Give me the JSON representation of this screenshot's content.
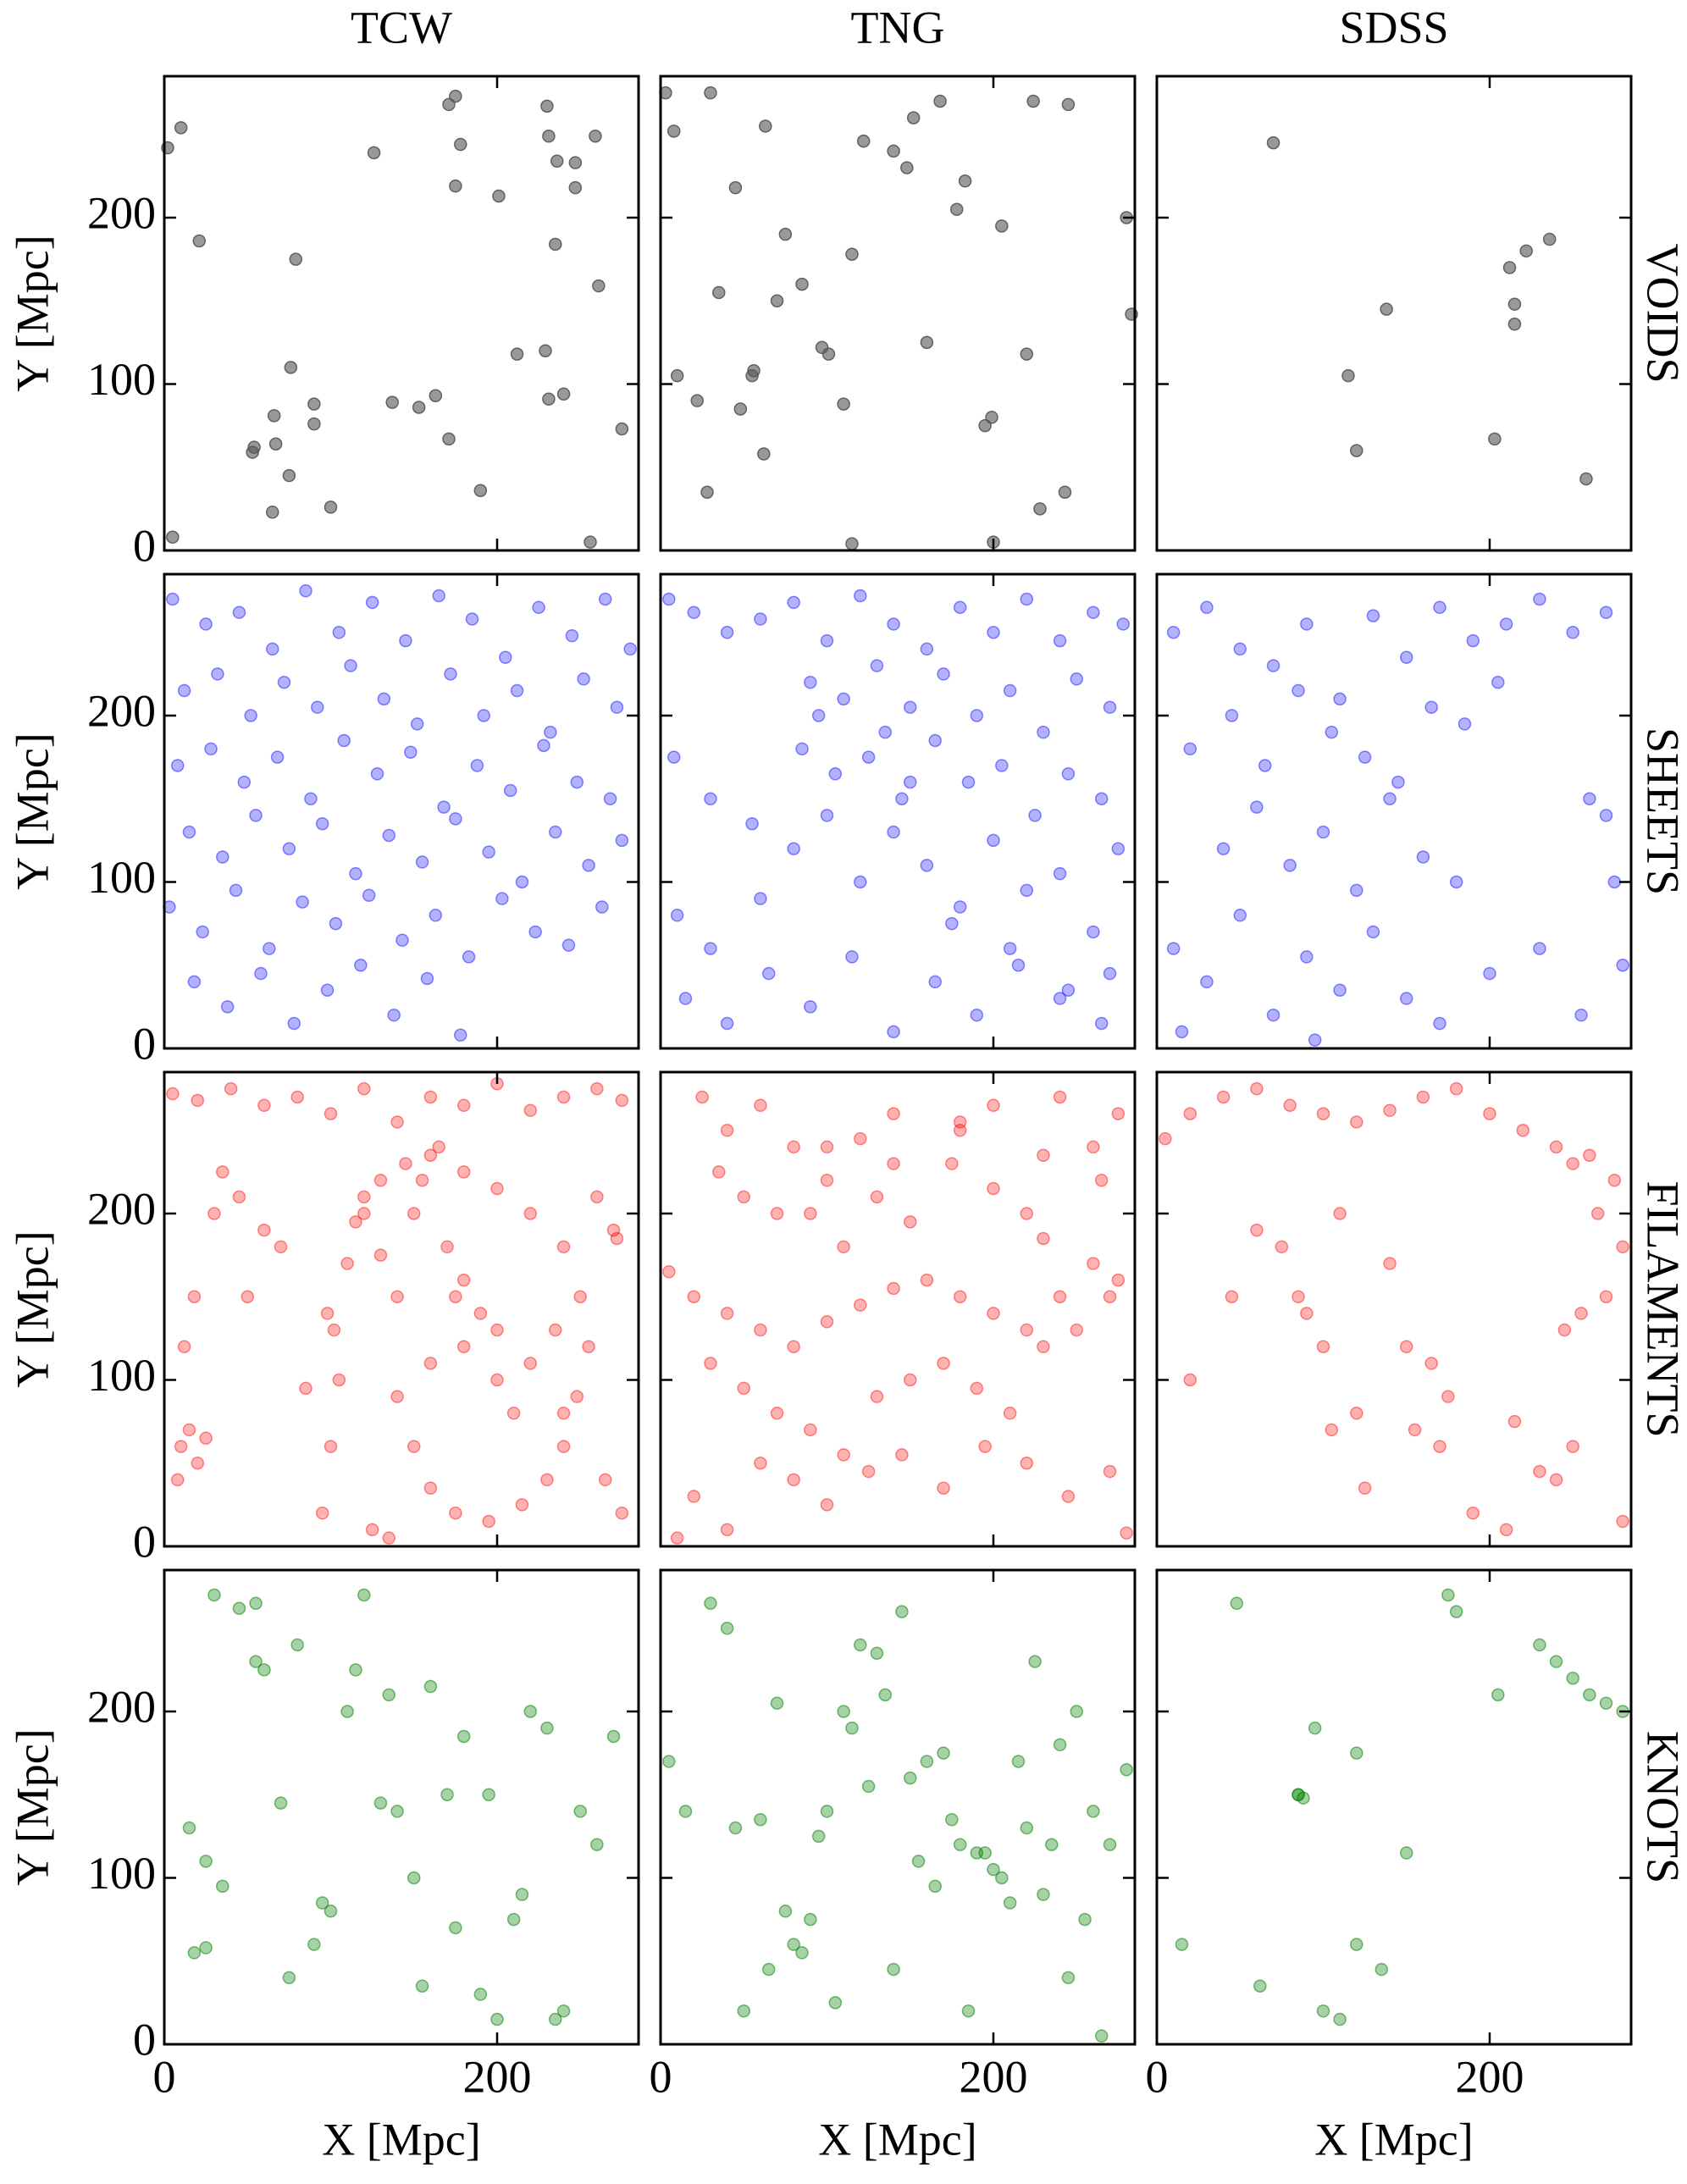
{
  "column_titles": [
    "TCW",
    "TNG",
    "SDSS"
  ],
  "row_titles": [
    "VOIDS",
    "SHEETS",
    "FILAMENTS",
    "KNOTS"
  ],
  "chart_data": [
    {
      "type": "scatter",
      "ylabel": "Y [Mpc]",
      "color": "#555555",
      "alpha": 0.6,
      "xlim": [
        0,
        285
      ],
      "ylim": [
        0,
        285
      ],
      "xticks": [
        0,
        200
      ],
      "yticks": [
        0,
        100,
        200
      ],
      "x": [
        2,
        10,
        21,
        79,
        76,
        66,
        90,
        90,
        53,
        67,
        75,
        65,
        100,
        126,
        137,
        153,
        163,
        171,
        175,
        171,
        178,
        175,
        201,
        190,
        230,
        231,
        236,
        247,
        235,
        212,
        229,
        240,
        231,
        247,
        261,
        275,
        256,
        5,
        259,
        54
      ],
      "values": [
        242,
        254,
        186,
        175,
        110,
        81,
        88,
        76,
        59,
        64,
        45,
        23,
        26,
        239,
        89,
        86,
        93,
        67,
        273,
        268,
        244,
        219,
        213,
        36,
        267,
        249,
        234,
        233,
        184,
        118,
        120,
        94,
        91,
        218,
        159,
        73,
        5,
        8,
        249,
        62
      ]
    },
    {
      "type": "scatter",
      "color": "#555555",
      "alpha": 0.6,
      "xlim": [
        0,
        285
      ],
      "ylim": [
        0,
        285
      ],
      "xticks": [
        0,
        200
      ],
      "yticks": [
        0,
        100,
        200
      ],
      "x": [
        3,
        8,
        10,
        22,
        28,
        45,
        48,
        55,
        62,
        63,
        70,
        75,
        85,
        97,
        101,
        110,
        115,
        122,
        140,
        148,
        152,
        160,
        168,
        178,
        183,
        195,
        199,
        200,
        205,
        220,
        224,
        228,
        243,
        245,
        280,
        283,
        30,
        35,
        56,
        115
      ],
      "values": [
        275,
        252,
        105,
        90,
        35,
        218,
        85,
        105,
        58,
        255,
        150,
        190,
        160,
        122,
        118,
        88,
        178,
        246,
        240,
        230,
        260,
        125,
        270,
        205,
        222,
        75,
        80,
        5,
        195,
        118,
        270,
        25,
        35,
        268,
        200,
        142,
        275,
        155,
        108,
        4
      ]
    },
    {
      "type": "scatter",
      "color": "#555555",
      "alpha": 0.6,
      "xlim": [
        0,
        285
      ],
      "ylim": [
        0,
        285
      ],
      "xticks": [
        0,
        200
      ],
      "yticks": [
        0,
        100,
        200
      ],
      "x": [
        70,
        115,
        120,
        138,
        203,
        212,
        215,
        215,
        222,
        236,
        258
      ],
      "values": [
        245,
        105,
        60,
        145,
        67,
        170,
        148,
        136,
        180,
        187,
        43
      ]
    },
    {
      "type": "scatter",
      "ylabel": "Y [Mpc]",
      "color": "#0000ff",
      "alpha": 0.3,
      "xlim": [
        0,
        285
      ],
      "ylim": [
        0,
        285
      ],
      "xticks": [
        0,
        200
      ],
      "yticks": [
        0,
        100,
        200
      ],
      "x": [
        5,
        25,
        45,
        65,
        85,
        105,
        125,
        145,
        165,
        185,
        205,
        225,
        245,
        265,
        280,
        12,
        32,
        52,
        72,
        92,
        112,
        132,
        152,
        172,
        192,
        212,
        232,
        252,
        272,
        8,
        28,
        48,
        68,
        88,
        108,
        128,
        148,
        168,
        188,
        208,
        228,
        248,
        268,
        15,
        35,
        55,
        75,
        95,
        115,
        135,
        155,
        175,
        195,
        215,
        235,
        255,
        275,
        3,
        23,
        43,
        63,
        83,
        103,
        123,
        143,
        163,
        183,
        203,
        223,
        243,
        263,
        18,
        38,
        58,
        78,
        98,
        118,
        138,
        158,
        178
      ],
      "values": [
        270,
        255,
        262,
        240,
        275,
        250,
        268,
        245,
        272,
        258,
        235,
        265,
        248,
        270,
        240,
        215,
        225,
        200,
        220,
        205,
        230,
        210,
        195,
        225,
        200,
        215,
        190,
        222,
        205,
        170,
        180,
        160,
        175,
        150,
        185,
        165,
        178,
        145,
        170,
        155,
        182,
        160,
        150,
        130,
        115,
        140,
        120,
        135,
        105,
        128,
        112,
        138,
        118,
        100,
        130,
        110,
        125,
        85,
        70,
        95,
        60,
        88,
        75,
        92,
        65,
        80,
        55,
        90,
        70,
        62,
        85,
        40,
        25,
        45,
        15,
        35,
        50,
        20,
        42,
        8
      ]
    },
    {
      "type": "scatter",
      "color": "#0000ff",
      "alpha": 0.3,
      "xlim": [
        0,
        285
      ],
      "ylim": [
        0,
        285
      ],
      "xticks": [
        0,
        200
      ],
      "yticks": [
        0,
        100,
        200
      ],
      "x": [
        5,
        20,
        40,
        60,
        80,
        100,
        120,
        140,
        160,
        180,
        200,
        220,
        240,
        260,
        278,
        90,
        110,
        130,
        150,
        170,
        190,
        210,
        230,
        250,
        270,
        85,
        105,
        125,
        145,
        165,
        185,
        205,
        225,
        245,
        265,
        10,
        30,
        60,
        80,
        100,
        120,
        140,
        160,
        180,
        200,
        220,
        240,
        260,
        275,
        15,
        40,
        65,
        90,
        115,
        140,
        165,
        190,
        215,
        240,
        265,
        8,
        30,
        55,
        95,
        135,
        175,
        210,
        245,
        270,
        150
      ],
      "values": [
        270,
        262,
        250,
        258,
        268,
        245,
        272,
        255,
        240,
        265,
        250,
        270,
        245,
        262,
        255,
        220,
        210,
        230,
        205,
        225,
        200,
        215,
        190,
        222,
        205,
        180,
        165,
        175,
        150,
        185,
        160,
        170,
        140,
        165,
        150,
        80,
        60,
        90,
        120,
        140,
        100,
        130,
        110,
        85,
        125,
        95,
        105,
        70,
        120,
        30,
        15,
        45,
        25,
        55,
        10,
        40,
        20,
        50,
        30,
        15,
        175,
        150,
        135,
        200,
        190,
        75,
        60,
        35,
        45,
        160
      ]
    },
    {
      "type": "scatter",
      "color": "#0000ff",
      "alpha": 0.3,
      "xlim": [
        0,
        285
      ],
      "ylim": [
        0,
        285
      ],
      "xticks": [
        0,
        200
      ],
      "yticks": [
        0,
        100,
        200
      ],
      "x": [
        10,
        30,
        50,
        70,
        90,
        110,
        130,
        150,
        170,
        190,
        210,
        230,
        250,
        270,
        20,
        45,
        65,
        85,
        105,
        125,
        145,
        165,
        185,
        205,
        40,
        60,
        80,
        100,
        120,
        140,
        160,
        180,
        10,
        30,
        50,
        70,
        90,
        110,
        130,
        270,
        275,
        260,
        150,
        170,
        200,
        230,
        255,
        280,
        15,
        95
      ],
      "values": [
        250,
        265,
        240,
        230,
        255,
        210,
        260,
        235,
        265,
        245,
        255,
        270,
        250,
        262,
        180,
        200,
        170,
        215,
        190,
        175,
        160,
        205,
        195,
        220,
        120,
        145,
        110,
        130,
        95,
        150,
        115,
        100,
        60,
        40,
        80,
        20,
        55,
        35,
        70,
        140,
        100,
        150,
        30,
        15,
        45,
        60,
        20,
        50,
        10,
        5
      ]
    },
    {
      "type": "scatter",
      "ylabel": "Y [Mpc]",
      "color": "#ff0000",
      "alpha": 0.3,
      "xlim": [
        0,
        285
      ],
      "ylim": [
        0,
        285
      ],
      "xticks": [
        0,
        200
      ],
      "yticks": [
        0,
        100,
        200
      ],
      "x": [
        5,
        20,
        40,
        60,
        80,
        100,
        120,
        140,
        160,
        180,
        200,
        220,
        240,
        260,
        275,
        10,
        15,
        20,
        8,
        25,
        12,
        18,
        95,
        100,
        105,
        98,
        102,
        110,
        115,
        120,
        130,
        145,
        160,
        180,
        200,
        220,
        240,
        250,
        255,
        248,
        240,
        230,
        215,
        195,
        175,
        160,
        150,
        140,
        160,
        180,
        200,
        220,
        240,
        265,
        275,
        270,
        150,
        155,
        165,
        170,
        175,
        140,
        130,
        120,
        180,
        190,
        200,
        210,
        60,
        70,
        45,
        35,
        30,
        50,
        260,
        272,
        125,
        135,
        85,
        235
      ],
      "values": [
        272,
        268,
        275,
        265,
        270,
        260,
        275,
        255,
        270,
        265,
        278,
        262,
        270,
        275,
        268,
        60,
        70,
        50,
        40,
        65,
        120,
        150,
        20,
        60,
        100,
        140,
        130,
        170,
        195,
        210,
        220,
        230,
        235,
        225,
        215,
        200,
        180,
        150,
        120,
        90,
        60,
        40,
        25,
        15,
        20,
        35,
        60,
        90,
        110,
        120,
        130,
        110,
        80,
        40,
        20,
        190,
        200,
        220,
        240,
        180,
        150,
        150,
        175,
        200,
        160,
        140,
        100,
        80,
        190,
        180,
        210,
        225,
        200,
        150,
        210,
        185,
        10,
        5,
        95,
        130
      ]
    },
    {
      "type": "scatter",
      "color": "#ff0000",
      "alpha": 0.3,
      "xlim": [
        0,
        285
      ],
      "ylim": [
        0,
        285
      ],
      "xticks": [
        0,
        200
      ],
      "yticks": [
        0,
        100,
        200
      ],
      "x": [
        5,
        20,
        40,
        60,
        80,
        100,
        120,
        140,
        160,
        180,
        200,
        220,
        240,
        260,
        275,
        30,
        50,
        70,
        90,
        110,
        130,
        150,
        170,
        190,
        210,
        230,
        250,
        270,
        40,
        60,
        80,
        100,
        120,
        140,
        180,
        200,
        220,
        240,
        20,
        40,
        60,
        80,
        100,
        125,
        145,
        170,
        195,
        220,
        245,
        270,
        90,
        110,
        130,
        150,
        175,
        200,
        230,
        260,
        275,
        25,
        35,
        50,
        70,
        100,
        140,
        180,
        230,
        265,
        10,
        280
      ],
      "values": [
        165,
        150,
        140,
        130,
        120,
        135,
        145,
        155,
        160,
        150,
        140,
        130,
        150,
        170,
        160,
        110,
        95,
        80,
        70,
        55,
        90,
        100,
        110,
        95,
        80,
        120,
        130,
        150,
        250,
        265,
        240,
        220,
        245,
        230,
        255,
        265,
        200,
        270,
        30,
        10,
        50,
        40,
        25,
        45,
        55,
        35,
        60,
        50,
        30,
        45,
        200,
        180,
        210,
        195,
        230,
        215,
        185,
        240,
        260,
        270,
        225,
        210,
        200,
        240,
        260,
        250,
        235,
        220,
        5,
        8
      ]
    },
    {
      "type": "scatter",
      "color": "#ff0000",
      "alpha": 0.3,
      "xlim": [
        0,
        285
      ],
      "ylim": [
        0,
        285
      ],
      "xticks": [
        0,
        200
      ],
      "yticks": [
        0,
        100,
        200
      ],
      "x": [
        5,
        20,
        40,
        60,
        80,
        100,
        120,
        140,
        160,
        180,
        200,
        220,
        240,
        260,
        275,
        250,
        265,
        280,
        270,
        255,
        60,
        75,
        85,
        90,
        100,
        105,
        120,
        140,
        150,
        165,
        170,
        175,
        190,
        210,
        215,
        230,
        240,
        245,
        250,
        280,
        45,
        20,
        110,
        155,
        125
      ],
      "values": [
        245,
        260,
        270,
        275,
        265,
        260,
        255,
        262,
        270,
        275,
        260,
        250,
        240,
        235,
        220,
        230,
        200,
        180,
        150,
        140,
        190,
        180,
        150,
        140,
        120,
        70,
        80,
        170,
        120,
        110,
        60,
        90,
        20,
        10,
        75,
        45,
        40,
        130,
        60,
        15,
        150,
        100,
        200,
        70,
        35
      ]
    },
    {
      "type": "scatter",
      "xlabel": "X [Mpc]",
      "ylabel": "Y [Mpc]",
      "color": "#007f00",
      "alpha": 0.35,
      "xlim": [
        0,
        285
      ],
      "ylim": [
        0,
        285
      ],
      "xticks": [
        0,
        200
      ],
      "yticks": [
        0,
        100,
        200
      ],
      "x": [
        18,
        25,
        30,
        45,
        55,
        60,
        70,
        80,
        90,
        100,
        110,
        120,
        130,
        140,
        150,
        160,
        170,
        180,
        190,
        200,
        210,
        220,
        230,
        240,
        250,
        260,
        270,
        15,
        25,
        35,
        55,
        75,
        95,
        115,
        135,
        155,
        175,
        195,
        215,
        235
      ],
      "values": [
        55,
        58,
        270,
        262,
        230,
        225,
        145,
        240,
        60,
        80,
        200,
        270,
        145,
        140,
        100,
        215,
        150,
        185,
        30,
        15,
        75,
        200,
        190,
        20,
        140,
        120,
        185,
        130,
        110,
        95,
        265,
        40,
        85,
        225,
        210,
        35,
        70,
        150,
        90,
        15
      ]
    },
    {
      "type": "scatter",
      "xlabel": "X [Mpc]",
      "color": "#007f00",
      "alpha": 0.35,
      "xlim": [
        0,
        285
      ],
      "ylim": [
        0,
        285
      ],
      "xticks": [
        0,
        200
      ],
      "yticks": [
        0,
        100,
        200
      ],
      "x": [
        5,
        15,
        30,
        45,
        60,
        70,
        80,
        90,
        100,
        110,
        120,
        130,
        140,
        150,
        160,
        170,
        180,
        190,
        200,
        210,
        220,
        230,
        240,
        250,
        260,
        270,
        280,
        40,
        50,
        65,
        75,
        85,
        95,
        105,
        115,
        125,
        135,
        145,
        155,
        165,
        175,
        185,
        195,
        205,
        215,
        225,
        235,
        245,
        255,
        265
      ],
      "values": [
        170,
        140,
        265,
        130,
        135,
        205,
        60,
        75,
        140,
        200,
        240,
        235,
        45,
        160,
        170,
        175,
        120,
        115,
        105,
        85,
        130,
        90,
        180,
        200,
        140,
        120,
        165,
        250,
        20,
        45,
        80,
        55,
        125,
        25,
        190,
        155,
        210,
        260,
        110,
        95,
        135,
        20,
        115,
        100,
        170,
        230,
        120,
        40,
        75,
        5
      ]
    },
    {
      "type": "scatter",
      "xlabel": "X [Mpc]",
      "color": "#007f00",
      "alpha": 0.35,
      "xlim": [
        0,
        285
      ],
      "ylim": [
        0,
        285
      ],
      "xticks": [
        0,
        200
      ],
      "yticks": [
        0,
        100,
        200
      ],
      "x": [
        15,
        48,
        62,
        85,
        88,
        95,
        100,
        110,
        120,
        135,
        150,
        175,
        180,
        230,
        240,
        250,
        260,
        270,
        280,
        205,
        120,
        85
      ],
      "values": [
        60,
        265,
        35,
        150,
        148,
        190,
        20,
        15,
        175,
        45,
        115,
        270,
        260,
        240,
        230,
        220,
        210,
        205,
        200,
        210,
        60,
        150
      ]
    }
  ]
}
